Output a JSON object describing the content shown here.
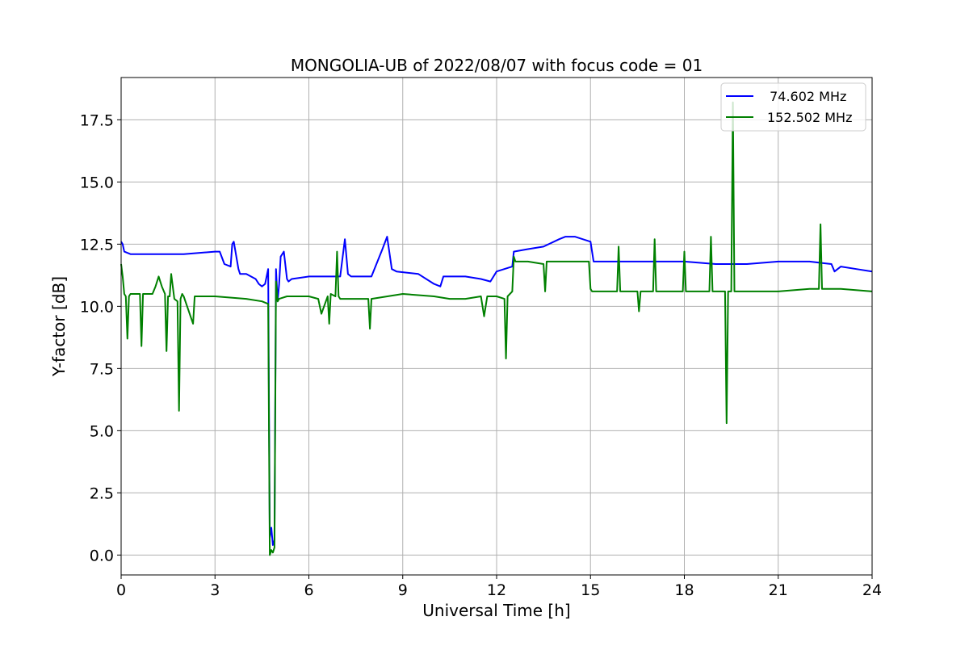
{
  "chart_data": {
    "type": "line",
    "title": "MONGOLIA-UB of 2022/08/07 with focus code = 01",
    "xlabel": "Universal Time [h]",
    "ylabel": "Y-factor [dB]",
    "xlim": [
      0,
      24
    ],
    "ylim": [
      -0.8,
      19.2
    ],
    "xticks": [
      0,
      3,
      6,
      9,
      12,
      15,
      18,
      21,
      24
    ],
    "xtick_labels": [
      "0",
      "3",
      "6",
      "9",
      "12",
      "15",
      "18",
      "21",
      "24"
    ],
    "yticks": [
      0.0,
      2.5,
      5.0,
      7.5,
      10.0,
      12.5,
      15.0,
      17.5
    ],
    "ytick_labels": [
      "0.0",
      "2.5",
      "5.0",
      "7.5",
      "10.0",
      "12.5",
      "15.0",
      "17.5"
    ],
    "grid": true,
    "legend_position": "top-right",
    "series": [
      {
        "name": " 74.602 MHz",
        "color": "#0000ff",
        "x": [
          0,
          0.05,
          0.1,
          0.3,
          1.0,
          2.0,
          3.0,
          3.15,
          3.3,
          3.5,
          3.55,
          3.6,
          3.75,
          3.8,
          4.0,
          4.3,
          4.4,
          4.5,
          4.6,
          4.7,
          4.75,
          4.8,
          4.85,
          4.9,
          4.95,
          5.0,
          5.05,
          5.1,
          5.2,
          5.3,
          5.35,
          5.45,
          6.0,
          7.0,
          7.15,
          7.25,
          7.35,
          8.0,
          8.35,
          8.5,
          8.65,
          8.8,
          9.5,
          10.0,
          10.2,
          10.3,
          11.0,
          11.5,
          11.8,
          12.0,
          12.5,
          12.55,
          13.0,
          13.5,
          14.0,
          14.2,
          14.5,
          15.0,
          15.1,
          16.0,
          17.0,
          18.0,
          19.0,
          20.0,
          21.0,
          22.0,
          22.7,
          22.8,
          23.0,
          23.5,
          24.0
        ],
        "y": [
          12.6,
          12.5,
          12.2,
          12.1,
          12.1,
          12.1,
          12.2,
          12.2,
          11.7,
          11.6,
          12.5,
          12.6,
          11.5,
          11.3,
          11.3,
          11.1,
          10.9,
          10.8,
          10.9,
          11.5,
          0.7,
          1.1,
          0.4,
          0.6,
          11.5,
          10.2,
          10.9,
          12.0,
          12.2,
          11.1,
          11.0,
          11.1,
          11.2,
          11.2,
          12.7,
          11.3,
          11.2,
          11.2,
          12.3,
          12.8,
          11.5,
          11.4,
          11.3,
          10.9,
          10.8,
          11.2,
          11.2,
          11.1,
          11.0,
          11.4,
          11.6,
          12.2,
          12.3,
          12.4,
          12.7,
          12.8,
          12.8,
          12.6,
          11.8,
          11.8,
          11.8,
          11.8,
          11.7,
          11.7,
          11.8,
          11.8,
          11.7,
          11.4,
          11.6,
          11.5,
          11.4
        ]
      },
      {
        "name": "152.502 MHz",
        "color": "#008000",
        "x": [
          0,
          0.05,
          0.1,
          0.15,
          0.2,
          0.25,
          0.3,
          0.6,
          0.65,
          0.7,
          1.0,
          1.1,
          1.2,
          1.3,
          1.4,
          1.45,
          1.5,
          1.55,
          1.6,
          1.7,
          1.8,
          1.85,
          1.9,
          1.95,
          2.0,
          2.3,
          2.35,
          2.4,
          3.0,
          4.0,
          4.5,
          4.7,
          4.75,
          4.8,
          4.85,
          4.9,
          4.95,
          5.0,
          5.05,
          5.3,
          5.4,
          6.0,
          6.3,
          6.4,
          6.6,
          6.65,
          6.7,
          6.85,
          6.9,
          6.95,
          7.0,
          7.9,
          7.95,
          8.0,
          9.0,
          10.0,
          10.5,
          11.0,
          11.5,
          11.6,
          11.7,
          12.0,
          12.25,
          12.3,
          12.35,
          12.5,
          12.55,
          12.6,
          13.0,
          13.5,
          13.55,
          13.6,
          14.0,
          14.5,
          14.95,
          15.0,
          15.05,
          15.5,
          15.85,
          15.9,
          15.95,
          16.0,
          16.5,
          16.55,
          16.6,
          17.0,
          17.05,
          17.1,
          17.95,
          18.0,
          18.05,
          18.8,
          18.85,
          18.9,
          19.0,
          19.3,
          19.35,
          19.4,
          19.5,
          19.55,
          19.6,
          20.0,
          21.0,
          22.0,
          22.3,
          22.35,
          22.4,
          23.0,
          24.0
        ],
        "y": [
          11.7,
          11.2,
          10.5,
          10.4,
          8.7,
          10.4,
          10.5,
          10.5,
          8.4,
          10.5,
          10.5,
          10.8,
          11.2,
          10.8,
          10.5,
          8.2,
          10.4,
          10.4,
          11.3,
          10.3,
          10.2,
          5.8,
          10.3,
          10.5,
          10.4,
          9.3,
          10.4,
          10.4,
          10.4,
          10.3,
          10.2,
          10.1,
          0.0,
          0.2,
          0.1,
          0.3,
          11.0,
          10.2,
          10.3,
          10.4,
          10.4,
          10.4,
          10.3,
          9.7,
          10.4,
          9.3,
          10.5,
          10.4,
          12.2,
          10.4,
          10.3,
          10.3,
          9.1,
          10.3,
          10.5,
          10.4,
          10.3,
          10.3,
          10.4,
          9.6,
          10.4,
          10.4,
          10.3,
          7.9,
          10.4,
          10.6,
          12.0,
          11.8,
          11.8,
          11.7,
          10.6,
          11.8,
          11.8,
          11.8,
          11.8,
          10.7,
          10.6,
          10.6,
          10.6,
          12.4,
          10.6,
          10.6,
          10.6,
          9.8,
          10.6,
          10.6,
          12.7,
          10.6,
          10.6,
          12.2,
          10.6,
          10.6,
          12.8,
          10.6,
          10.6,
          10.6,
          5.3,
          10.6,
          10.6,
          18.2,
          10.6,
          10.6,
          10.6,
          10.7,
          10.7,
          13.3,
          10.7,
          10.7,
          10.6
        ]
      }
    ]
  }
}
